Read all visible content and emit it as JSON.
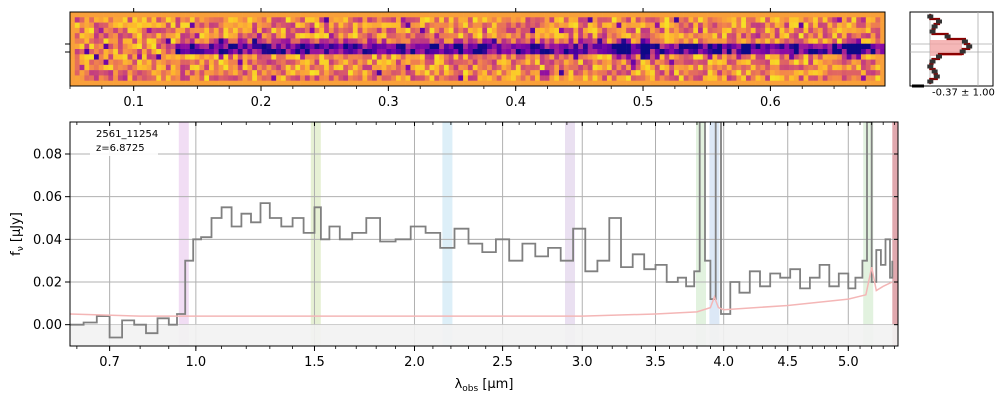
{
  "colors": {
    "spectrum": "#808080",
    "error": "#f4b6b6",
    "line_markers": [
      "#e8c7ec",
      "#d6e6b8",
      "#c6e4f3",
      "#dccbe8",
      "#cfe9c9",
      "#c4d8f0",
      "#cfe9c9"
    ],
    "end_band": "#e0a8ae",
    "profile_line": "#8b0000",
    "profile_fill": "#f3a5a5",
    "profile_points": "#333333"
  },
  "chart_data": [
    {
      "type": "heatmap",
      "colormap": "plasma",
      "x_ticks": [
        "0.1",
        "0.2",
        "0.3",
        "0.4",
        "0.5",
        "0.6"
      ],
      "x_tick_values": [
        0.1,
        0.2,
        0.3,
        0.4,
        0.5,
        0.6
      ],
      "x_range": [
        0.05,
        0.69
      ],
      "trace_start": 0.13,
      "bright_spots": [
        0.483,
        0.5,
        0.665
      ]
    },
    {
      "type": "line",
      "annotation": "-0.37 ± 1.00",
      "profile": [
        0.1,
        0.3,
        0.2,
        0.15,
        0.5,
        0.9,
        1.0,
        0.85,
        0.3,
        0.15,
        0.1,
        0.2,
        0.25,
        0.1
      ]
    },
    {
      "type": "line",
      "object_id": "2561_11254",
      "redshift": "z=6.8725",
      "xlabel": "λobs [μm]",
      "ylabel": "fν [μJy]",
      "xscale": "sqrt",
      "xlim": [
        0.58,
        5.43
      ],
      "ylim": [
        -0.01,
        0.095
      ],
      "x_ticks": [
        "0.7",
        "1.0",
        "1.5",
        "2.0",
        "2.5",
        "3.0",
        "3.5",
        "4.0",
        "4.5",
        "5.0"
      ],
      "x_tick_values": [
        0.7,
        1.0,
        1.5,
        2.0,
        2.5,
        3.0,
        3.5,
        4.0,
        4.5,
        5.0
      ],
      "y_ticks": [
        "0.00",
        "0.02",
        "0.04",
        "0.06",
        "0.08"
      ],
      "y_tick_values": [
        0.0,
        0.02,
        0.04,
        0.06,
        0.08
      ],
      "grid": true,
      "line_markers": [
        0.955,
        1.506,
        2.18,
        2.92,
        3.83,
        3.93,
        5.17
      ],
      "end_band": [
        5.38,
        5.43
      ],
      "series": [
        {
          "role": "flux",
          "x": [
            0.58,
            0.62,
            0.66,
            0.7,
            0.74,
            0.78,
            0.82,
            0.86,
            0.9,
            0.93,
            0.96,
            0.99,
            1.02,
            1.06,
            1.1,
            1.14,
            1.18,
            1.22,
            1.26,
            1.3,
            1.35,
            1.4,
            1.45,
            1.5,
            1.53,
            1.57,
            1.62,
            1.68,
            1.75,
            1.82,
            1.9,
            1.98,
            2.06,
            2.14,
            2.22,
            2.3,
            2.38,
            2.46,
            2.54,
            2.62,
            2.7,
            2.78,
            2.86,
            2.94,
            3.02,
            3.1,
            3.18,
            3.26,
            3.34,
            3.42,
            3.5,
            3.58,
            3.66,
            3.72,
            3.78,
            3.82,
            3.86,
            3.9,
            3.94,
            3.98,
            4.05,
            4.12,
            4.2,
            4.28,
            4.36,
            4.44,
            4.52,
            4.6,
            4.68,
            4.76,
            4.84,
            4.92,
            5.0,
            5.06,
            5.12,
            5.16,
            5.2,
            5.24,
            5.28,
            5.32,
            5.36,
            5.38
          ],
          "y": [
            0.0,
            0.001,
            0.004,
            -0.006,
            0.002,
            0.0,
            -0.004,
            0.003,
            0.0,
            0.005,
            0.03,
            0.04,
            0.041,
            0.05,
            0.055,
            0.046,
            0.052,
            0.048,
            0.057,
            0.05,
            0.046,
            0.05,
            0.043,
            0.055,
            0.04,
            0.046,
            0.04,
            0.043,
            0.05,
            0.039,
            0.04,
            0.046,
            0.043,
            0.036,
            0.045,
            0.038,
            0.034,
            0.04,
            0.03,
            0.038,
            0.032,
            0.036,
            0.03,
            0.045,
            0.025,
            0.03,
            0.05,
            0.027,
            0.033,
            0.026,
            0.028,
            0.02,
            0.022,
            0.018,
            0.025,
            0.095,
            0.03,
            0.012,
            0.095,
            0.005,
            0.02,
            0.015,
            0.025,
            0.018,
            0.024,
            0.022,
            0.026,
            0.017,
            0.022,
            0.028,
            0.018,
            0.024,
            0.017,
            0.022,
            0.03,
            0.095,
            0.02,
            0.035,
            0.028,
            0.04,
            0.022,
            0.03
          ]
        },
        {
          "role": "error",
          "x": [
            0.58,
            0.8,
            1.0,
            1.5,
            2.0,
            2.5,
            3.0,
            3.5,
            3.8,
            3.9,
            3.93,
            3.96,
            4.0,
            4.5,
            5.0,
            5.15,
            5.2,
            5.24,
            5.3,
            5.38
          ],
          "y": [
            0.005,
            0.004,
            0.004,
            0.004,
            0.004,
            0.004,
            0.004,
            0.005,
            0.006,
            0.008,
            0.013,
            0.008,
            0.007,
            0.009,
            0.012,
            0.014,
            0.027,
            0.016,
            0.018,
            0.02
          ]
        }
      ]
    }
  ]
}
